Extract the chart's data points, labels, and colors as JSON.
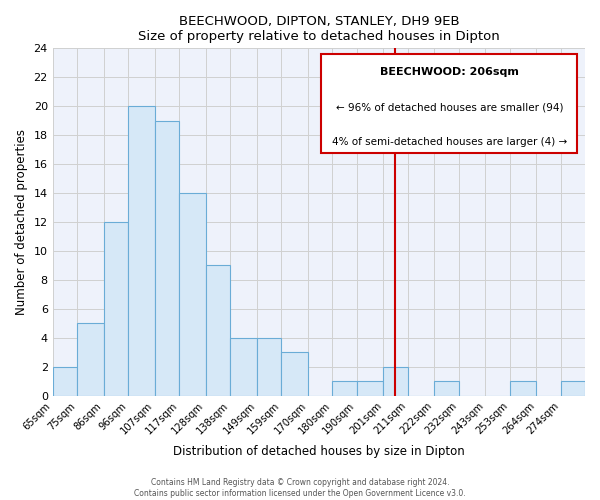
{
  "title": "BEECHWOOD, DIPTON, STANLEY, DH9 9EB",
  "subtitle": "Size of property relative to detached houses in Dipton",
  "xlabel": "Distribution of detached houses by size in Dipton",
  "ylabel": "Number of detached properties",
  "bin_labels": [
    "65sqm",
    "75sqm",
    "86sqm",
    "96sqm",
    "107sqm",
    "117sqm",
    "128sqm",
    "138sqm",
    "149sqm",
    "159sqm",
    "170sqm",
    "180sqm",
    "190sqm",
    "201sqm",
    "211sqm",
    "222sqm",
    "232sqm",
    "243sqm",
    "253sqm",
    "264sqm",
    "274sqm"
  ],
  "bin_edges": [
    65,
    75,
    86,
    96,
    107,
    117,
    128,
    138,
    149,
    159,
    170,
    180,
    190,
    201,
    211,
    222,
    232,
    243,
    253,
    264,
    274,
    284
  ],
  "counts": [
    2,
    5,
    12,
    20,
    19,
    14,
    9,
    4,
    4,
    3,
    0,
    1,
    1,
    2,
    0,
    1,
    0,
    0,
    1,
    0,
    1
  ],
  "bar_facecolor": "#d6e8f7",
  "bar_edgecolor": "#6aacd6",
  "bar_linewidth": 0.8,
  "grid_color": "#d0d0d0",
  "bg_color": "#eef2fb",
  "property_size": 206,
  "property_line_color": "#cc0000",
  "annotation_title": "BEECHWOOD: 206sqm",
  "annotation_line1": "← 96% of detached houses are smaller (94)",
  "annotation_line2": "4% of semi-detached houses are larger (4) →",
  "annotation_box_edgecolor": "#cc0000",
  "footer_line1": "Contains HM Land Registry data © Crown copyright and database right 2024.",
  "footer_line2": "Contains public sector information licensed under the Open Government Licence v3.0.",
  "ylim": [
    0,
    24
  ],
  "yticks": [
    0,
    2,
    4,
    6,
    8,
    10,
    12,
    14,
    16,
    18,
    20,
    22,
    24
  ]
}
